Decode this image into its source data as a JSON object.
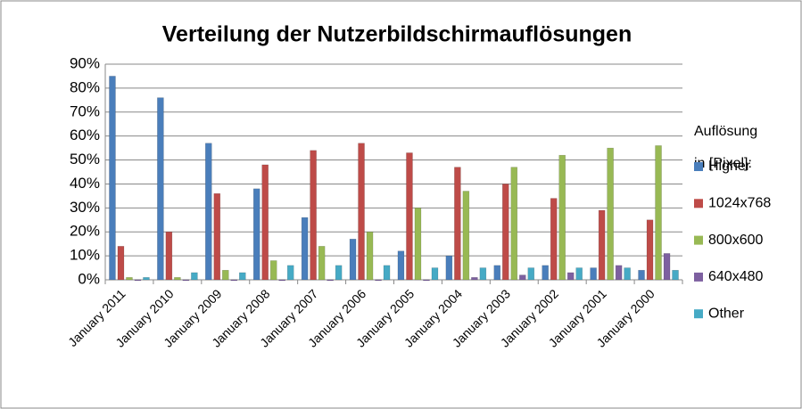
{
  "chart_data": {
    "type": "bar",
    "title": "Verteilung der Nutzerbildschirmauflösungen",
    "legend_title": [
      "Auflösung",
      "in [Pixel]:"
    ],
    "categories": [
      "January 2011",
      "January 2010",
      "January 2009",
      "January 2008",
      "January 2007",
      "January 2006",
      "January 2005",
      "January 2004",
      "January 2003",
      "January 2002",
      "January 2001",
      "January 2000"
    ],
    "series": [
      {
        "name": "Higher",
        "color": "#4a7ebb",
        "values": [
          85,
          76,
          57,
          38,
          26,
          17,
          12,
          10,
          6,
          6,
          5,
          4
        ]
      },
      {
        "name": "1024x768",
        "color": "#be4b48",
        "values": [
          14,
          20,
          36,
          48,
          54,
          57,
          53,
          47,
          40,
          34,
          29,
          25
        ]
      },
      {
        "name": "800x600",
        "color": "#98b954",
        "values": [
          1,
          1,
          4,
          8,
          14,
          20,
          30,
          37,
          47,
          52,
          55,
          56
        ]
      },
      {
        "name": "640x480",
        "color": "#7d60a0",
        "values": [
          0,
          0,
          0,
          0,
          0,
          0,
          0,
          1,
          2,
          3,
          6,
          11
        ]
      },
      {
        "name": "Other",
        "color": "#46aac5",
        "values": [
          1,
          3,
          3,
          6,
          6,
          6,
          5,
          5,
          5,
          5,
          5,
          4
        ]
      }
    ],
    "ylim": [
      0,
      90
    ],
    "yticks": [
      {
        "value": 0,
        "label": "0%"
      },
      {
        "value": 10,
        "label": "10%"
      },
      {
        "value": 20,
        "label": "20%"
      },
      {
        "value": 30,
        "label": "30%"
      },
      {
        "value": 40,
        "label": "40%"
      },
      {
        "value": 50,
        "label": "50%"
      },
      {
        "value": 60,
        "label": "60%"
      },
      {
        "value": 70,
        "label": "70%"
      },
      {
        "value": 80,
        "label": "80%"
      },
      {
        "value": 90,
        "label": "90%"
      }
    ],
    "grid": true,
    "legend": "right"
  }
}
